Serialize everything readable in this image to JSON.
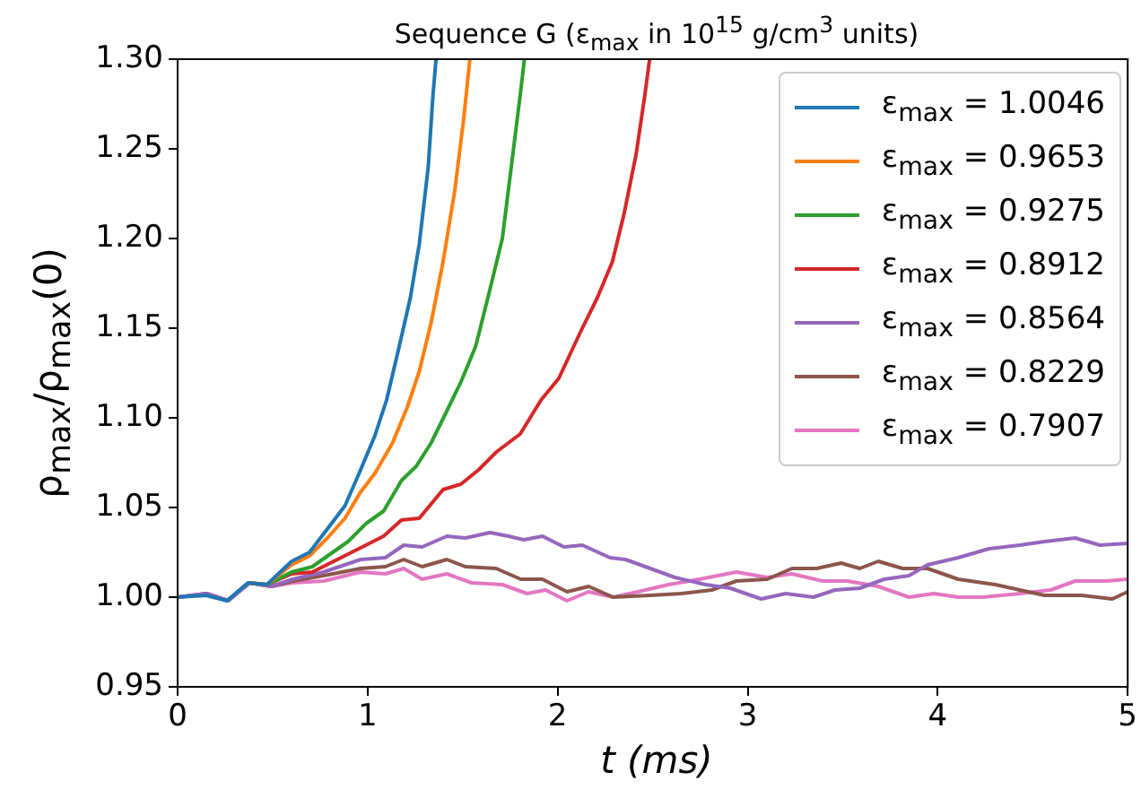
{
  "chart_data": {
    "type": "line",
    "title": "Sequence G (ε$_{max}$ in 10$^{15}$ g/cm$^{3}$ units)",
    "xlabel": "t (ms)",
    "ylabel": "ρ$_{max}$/ρ$_{max}$(0)",
    "xlim": [
      0,
      5
    ],
    "xticks": [
      0,
      1,
      2,
      3,
      4,
      5
    ],
    "ylim": [
      0.95,
      1.3
    ],
    "yticks": [
      {
        "value": 0.95,
        "label": "0.95"
      },
      {
        "value": 1.0,
        "label": "1.00"
      },
      {
        "value": 1.05,
        "label": "1.05"
      },
      {
        "value": 1.1,
        "label": "1.10"
      },
      {
        "value": 1.15,
        "label": "1.15"
      },
      {
        "value": 1.2,
        "label": "1.20"
      },
      {
        "value": 1.25,
        "label": "1.25"
      },
      {
        "value": 1.3,
        "label": "1.30"
      }
    ],
    "legend": "top right",
    "marker": "none",
    "line_style": "solid",
    "series": [
      {
        "name": "ε$_{max}$ = 1.0046",
        "color": "#1f77b4",
        "x": [
          0,
          0.15,
          0.26,
          0.37,
          0.47,
          0.6,
          0.694,
          0.788,
          0.881,
          0.959,
          1.038,
          1.1,
          1.16,
          1.225,
          1.272,
          1.319,
          1.344,
          1.36
        ],
        "values": [
          1.0,
          1.001,
          0.998,
          1.008,
          1.007,
          1.02,
          1.025,
          1.038,
          1.051,
          1.07,
          1.09,
          1.11,
          1.137,
          1.167,
          1.197,
          1.24,
          1.28,
          1.3
        ]
      },
      {
        "name": "ε$_{max}$ = 0.9653",
        "color": "#ff7f0e",
        "x": [
          0.37,
          0.47,
          0.6,
          0.694,
          0.788,
          0.881,
          0.959,
          1.038,
          1.131,
          1.209,
          1.272,
          1.334,
          1.397,
          1.459,
          1.506,
          1.538
        ],
        "values": [
          1.008,
          1.007,
          1.018,
          1.023,
          1.033,
          1.044,
          1.058,
          1.069,
          1.086,
          1.106,
          1.126,
          1.153,
          1.187,
          1.227,
          1.267,
          1.3
        ]
      },
      {
        "name": "ε$_{max}$ = 0.9275",
        "color": "#2ca02c",
        "x": [
          0.37,
          0.47,
          0.6,
          0.709,
          0.803,
          0.897,
          0.991,
          1.084,
          1.178,
          1.256,
          1.334,
          1.413,
          1.491,
          1.569,
          1.647,
          1.709,
          1.756,
          1.803,
          1.825
        ],
        "values": [
          1.008,
          1.007,
          1.014,
          1.017,
          1.024,
          1.031,
          1.041,
          1.048,
          1.065,
          1.073,
          1.086,
          1.103,
          1.12,
          1.14,
          1.173,
          1.2,
          1.24,
          1.28,
          1.3
        ]
      },
      {
        "name": "ε$_{max}$ = 0.8912",
        "color": "#d62728",
        "x": [
          0.37,
          0.47,
          0.6,
          0.709,
          0.803,
          0.897,
          0.991,
          1.084,
          1.178,
          1.272,
          1.397,
          1.491,
          1.584,
          1.678,
          1.803,
          1.913,
          2.006,
          2.116,
          2.209,
          2.288,
          2.35,
          2.413,
          2.459,
          2.484
        ],
        "values": [
          1.008,
          1.007,
          1.013,
          1.014,
          1.019,
          1.024,
          1.029,
          1.034,
          1.043,
          1.044,
          1.06,
          1.063,
          1.071,
          1.081,
          1.091,
          1.11,
          1.122,
          1.147,
          1.167,
          1.187,
          1.214,
          1.247,
          1.28,
          1.3
        ]
      },
      {
        "name": "ε$_{max}$ = 0.8564",
        "color": "#9467bd",
        "x": [
          0,
          0.152,
          0.266,
          0.379,
          0.493,
          0.606,
          0.768,
          0.963,
          1.093,
          1.19,
          1.287,
          1.417,
          1.515,
          1.644,
          1.741,
          1.822,
          1.92,
          2.033,
          2.13,
          2.276,
          2.357,
          2.487,
          2.617,
          2.779,
          2.909,
          3.071,
          3.2,
          3.346,
          3.46,
          3.59,
          3.719,
          3.849,
          3.946,
          4.108,
          4.27,
          4.432,
          4.562,
          4.724,
          4.854,
          5.0
        ],
        "values": [
          1.0,
          1.002,
          0.998,
          1.008,
          1.006,
          1.01,
          1.014,
          1.021,
          1.022,
          1.029,
          1.028,
          1.034,
          1.033,
          1.036,
          1.034,
          1.032,
          1.034,
          1.028,
          1.029,
          1.022,
          1.021,
          1.016,
          1.011,
          1.007,
          1.005,
          0.999,
          1.002,
          1.0,
          1.004,
          1.005,
          1.01,
          1.012,
          1.018,
          1.022,
          1.027,
          1.029,
          1.031,
          1.033,
          1.029,
          1.03
        ]
      },
      {
        "name": "ε$_{max}$ = 0.8229",
        "color": "#8c564b",
        "x": [
          0,
          0.152,
          0.266,
          0.379,
          0.493,
          0.606,
          0.768,
          0.963,
          1.093,
          1.19,
          1.287,
          1.417,
          1.515,
          1.676,
          1.806,
          1.92,
          2.049,
          2.163,
          2.292,
          2.487,
          2.649,
          2.811,
          2.941,
          3.103,
          3.233,
          3.363,
          3.492,
          3.59,
          3.687,
          3.816,
          3.946,
          4.108,
          4.303,
          4.562,
          4.757,
          4.919,
          5.0
        ],
        "values": [
          1.0,
          1.002,
          0.998,
          1.008,
          1.006,
          1.009,
          1.012,
          1.016,
          1.017,
          1.021,
          1.017,
          1.021,
          1.017,
          1.016,
          1.01,
          1.01,
          1.003,
          1.006,
          1.0,
          1.001,
          1.002,
          1.004,
          1.009,
          1.01,
          1.016,
          1.016,
          1.019,
          1.016,
          1.02,
          1.016,
          1.016,
          1.01,
          1.007,
          1.001,
          1.001,
          0.999,
          1.003
        ]
      },
      {
        "name": "ε$_{max}$ = 0.7907",
        "color": "#e377c2",
        "x": [
          0,
          0.152,
          0.266,
          0.379,
          0.493,
          0.606,
          0.768,
          0.963,
          1.093,
          1.19,
          1.287,
          1.417,
          1.547,
          1.709,
          1.839,
          1.936,
          2.049,
          2.163,
          2.292,
          2.422,
          2.584,
          2.746,
          2.941,
          3.103,
          3.233,
          3.395,
          3.525,
          3.687,
          3.849,
          3.979,
          4.108,
          4.238,
          4.432,
          4.595,
          4.724,
          4.887,
          5.0
        ],
        "values": [
          1.0,
          1.002,
          0.998,
          1.008,
          1.006,
          1.008,
          1.009,
          1.014,
          1.013,
          1.016,
          1.01,
          1.013,
          1.008,
          1.007,
          1.002,
          1.004,
          0.998,
          1.003,
          1.0,
          1.003,
          1.007,
          1.01,
          1.014,
          1.011,
          1.013,
          1.009,
          1.009,
          1.006,
          1.0,
          1.002,
          1.0,
          1.0,
          1.002,
          1.004,
          1.009,
          1.009,
          1.01
        ]
      }
    ]
  }
}
